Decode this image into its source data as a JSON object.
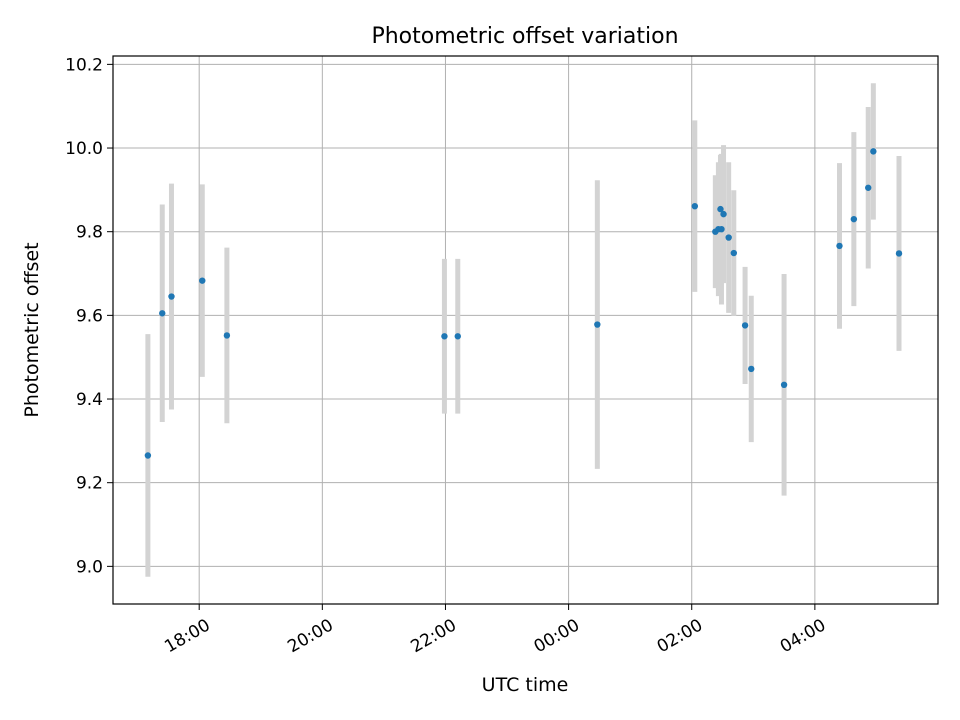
{
  "chart_data": {
    "type": "scatter",
    "title": "Photometric offset variation",
    "xlabel": "UTC time",
    "ylabel": "Photometric offset",
    "x_tick_labels": [
      "18:00",
      "20:00",
      "22:00",
      "00:00",
      "02:00",
      "04:00"
    ],
    "x_tick_hours": [
      0,
      2,
      4,
      6,
      8,
      10
    ],
    "y_ticks": [
      9.0,
      9.2,
      9.4,
      9.6,
      9.8,
      10.0,
      10.2
    ],
    "x_range_hours": [
      -1.4,
      12.0
    ],
    "ylim": [
      8.91,
      10.22
    ],
    "grid": true,
    "marker_color": "#1f77b4",
    "errorbar_color": "#d3d3d3",
    "points": [
      {
        "t": "17:10",
        "y": 9.265,
        "err": 0.29
      },
      {
        "t": "17:24",
        "y": 9.605,
        "err": 0.26
      },
      {
        "t": "17:33",
        "y": 9.645,
        "err": 0.27
      },
      {
        "t": "18:03",
        "y": 9.683,
        "err": 0.23
      },
      {
        "t": "18:27",
        "y": 9.552,
        "err": 0.21
      },
      {
        "t": "21:59",
        "y": 9.55,
        "err": 0.185
      },
      {
        "t": "22:12",
        "y": 9.55,
        "err": 0.185
      },
      {
        "t": "00:28",
        "y": 9.578,
        "err": 0.345
      },
      {
        "t": "02:03",
        "y": 9.861,
        "err": 0.205
      },
      {
        "t": "02:23",
        "y": 9.8,
        "err": 0.135
      },
      {
        "t": "02:26",
        "y": 9.806,
        "err": 0.16
      },
      {
        "t": "02:28",
        "y": 9.854,
        "err": 0.13
      },
      {
        "t": "02:29",
        "y": 9.806,
        "err": 0.18
      },
      {
        "t": "02:31",
        "y": 9.842,
        "err": 0.165
      },
      {
        "t": "02:36",
        "y": 9.786,
        "err": 0.18
      },
      {
        "t": "02:41",
        "y": 9.749,
        "err": 0.15
      },
      {
        "t": "02:52",
        "y": 9.576,
        "err": 0.14
      },
      {
        "t": "02:58",
        "y": 9.472,
        "err": 0.175
      },
      {
        "t": "03:30",
        "y": 9.434,
        "err": 0.265
      },
      {
        "t": "04:24",
        "y": 9.766,
        "err": 0.198
      },
      {
        "t": "04:38",
        "y": 9.83,
        "err": 0.208
      },
      {
        "t": "04:52",
        "y": 9.905,
        "err": 0.193
      },
      {
        "t": "04:57",
        "y": 9.992,
        "err": 0.163
      },
      {
        "t": "05:22",
        "y": 9.748,
        "err": 0.233
      }
    ]
  }
}
